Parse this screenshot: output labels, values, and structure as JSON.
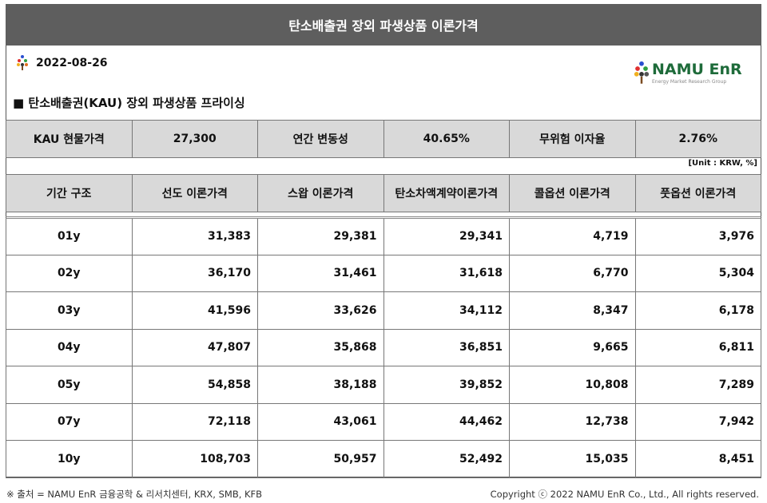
{
  "title": "탄소배출권 장외 파생상품 이론가격",
  "date": "2022-08-26",
  "logo": {
    "name": "NAMU EnR",
    "subtitle": "Energy Market Research Group"
  },
  "section_title": "탄소배출권(KAU) 장외 파생상품 프라이싱",
  "params": [
    {
      "label": "KAU 현물가격",
      "value": "27,300"
    },
    {
      "label": "연간 변동성",
      "value": "40.65%"
    },
    {
      "label": "무위험 이자율",
      "value": "2.76%"
    }
  ],
  "unit": "[Unit : KRW, %]",
  "columns": [
    "기간 구조",
    "선도 이론가격",
    "스왑 이론가격",
    "탄소차액계약이론가격",
    "콜옵션 이론가격",
    "풋옵션 이론가격"
  ],
  "rows": [
    [
      "01y",
      "31,383",
      "29,381",
      "29,341",
      "4,719",
      "3,976"
    ],
    [
      "02y",
      "36,170",
      "31,461",
      "31,618",
      "6,770",
      "5,304"
    ],
    [
      "03y",
      "41,596",
      "33,626",
      "34,112",
      "8,347",
      "6,178"
    ],
    [
      "04y",
      "47,807",
      "35,868",
      "36,851",
      "9,665",
      "6,811"
    ],
    [
      "05y",
      "54,858",
      "38,188",
      "39,852",
      "10,808",
      "7,289"
    ],
    [
      "07y",
      "72,118",
      "43,061",
      "44,462",
      "12,738",
      "7,942"
    ],
    [
      "10y",
      "108,703",
      "50,957",
      "52,492",
      "15,035",
      "8,451"
    ]
  ],
  "footer": {
    "source": "※ 출처 = NAMU EnR 금융공학 & 리서치센터, KRX, SMB, KFB",
    "copyright": "Copyright ⓒ 2022 NAMU EnR Co., Ltd., All rights reserved."
  },
  "colors": {
    "title_bar": "#5e5e5e",
    "header_bg": "#d9d9d9",
    "brand_green": "#1e6b3a"
  }
}
